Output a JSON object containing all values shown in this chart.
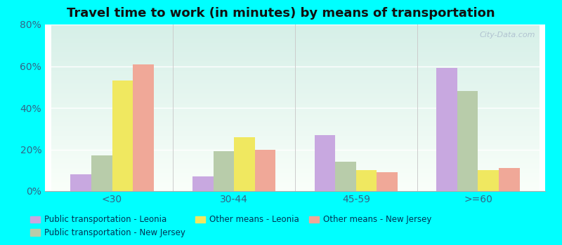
{
  "title": "Travel time to work (in minutes) by means of transportation",
  "categories": [
    "<30",
    "30-44",
    "45-59",
    ">=60"
  ],
  "series_order": [
    "Public transportation - Leonia",
    "Public transportation - New Jersey",
    "Other means - Leonia",
    "Other means - New Jersey"
  ],
  "series": {
    "Public transportation - Leonia": [
      8,
      7,
      27,
      59
    ],
    "Public transportation - New Jersey": [
      17,
      19,
      14,
      48
    ],
    "Other means - Leonia": [
      53,
      26,
      10,
      10
    ],
    "Other means - New Jersey": [
      61,
      20,
      9,
      11
    ]
  },
  "colors": {
    "Public transportation - Leonia": "#c8a8e0",
    "Public transportation - New Jersey": "#b8ccaa",
    "Other means - Leonia": "#f0e860",
    "Other means - New Jersey": "#f0a898"
  },
  "legend_order": [
    "Public transportation - Leonia",
    "Public transportation - New Jersey",
    "Other means - Leonia",
    "Other means - New Jersey"
  ],
  "ylim": [
    0,
    80
  ],
  "yticks": [
    0,
    20,
    40,
    60,
    80
  ],
  "ytick_labels": [
    "0%",
    "20%",
    "40%",
    "60%",
    "80%"
  ],
  "outer_background": "#00ffff",
  "grid_color": "#ffffff",
  "watermark": "City-Data.com"
}
